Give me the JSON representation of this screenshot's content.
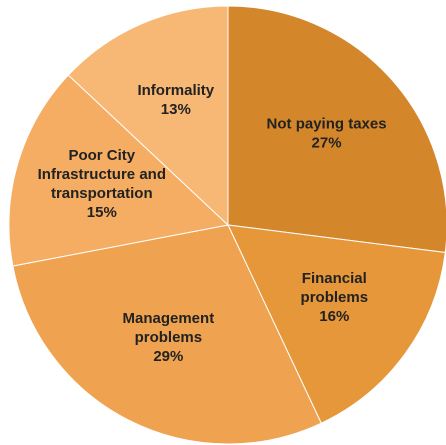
{
  "chart_data": {
    "type": "pie",
    "categories": [
      "Not paying taxes",
      "Financial problems",
      "Management problems",
      "Poor City Infrastructure and transportation",
      "Informality"
    ],
    "values": [
      27,
      16,
      29,
      15,
      13
    ],
    "value_labels": [
      "27%",
      "16%",
      "29%",
      "15%",
      "13%"
    ],
    "colors": [
      "#d4862b",
      "#e5973a",
      "#efa24f",
      "#f4ad62",
      "#f7b876"
    ]
  }
}
